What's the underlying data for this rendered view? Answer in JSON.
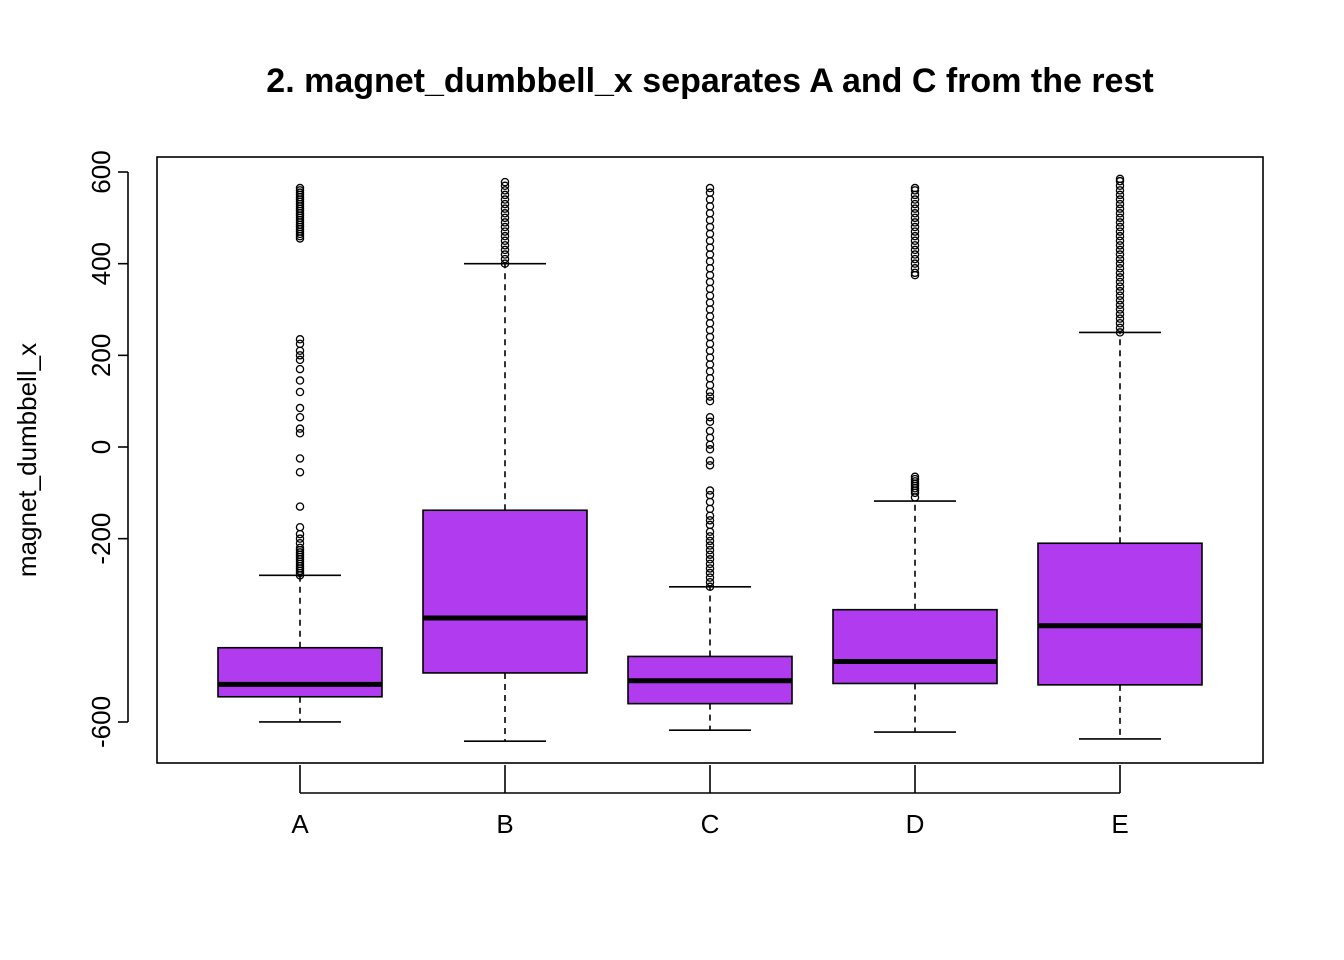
{
  "chart_data": {
    "type": "boxplot",
    "title": "2. magnet_dumbbell_x separates A and C from the rest",
    "xlabel": "",
    "ylabel": "magnet_dumbbell_x",
    "categories": [
      "A",
      "B",
      "C",
      "D",
      "E"
    ],
    "ylim": [
      -667,
      654
    ],
    "yticks": [
      -600,
      -200,
      0,
      200,
      400,
      600
    ],
    "ytick_labels": [
      "-600",
      "-200",
      "0",
      "200",
      "400",
      "600"
    ],
    "box_color": "#b13bef",
    "grid": false,
    "boxes": [
      {
        "category": "A",
        "whisker_low": -600,
        "q1": -545,
        "median": -518,
        "q3": -438,
        "whisker_high": -280,
        "outliers": [
          -280,
          -275,
          -270,
          -265,
          -260,
          -255,
          -250,
          -245,
          -240,
          -235,
          -230,
          -225,
          -220,
          -210,
          -200,
          -190,
          -175,
          -130,
          -55,
          -25,
          30,
          40,
          65,
          85,
          120,
          145,
          170,
          190,
          200,
          210,
          225,
          235,
          455,
          460,
          465,
          470,
          475,
          480,
          485,
          490,
          495,
          500,
          505,
          510,
          515,
          520,
          525,
          530,
          535,
          540,
          545,
          550,
          555,
          560,
          565
        ]
      },
      {
        "category": "B",
        "whisker_low": -642,
        "q1": -493,
        "median": -373,
        "q3": -138,
        "whisker_high": 400,
        "outliers": [
          400,
          410,
          420,
          430,
          440,
          450,
          460,
          470,
          480,
          490,
          500,
          510,
          520,
          530,
          540,
          550,
          560,
          570,
          578
        ]
      },
      {
        "category": "C",
        "whisker_low": -618,
        "q1": -560,
        "median": -510,
        "q3": -457,
        "whisker_high": -305,
        "outliers": [
          -305,
          -295,
          -285,
          -275,
          -265,
          -255,
          -245,
          -235,
          -225,
          -215,
          -205,
          -195,
          -185,
          -170,
          -160,
          -150,
          -135,
          -120,
          -105,
          -95,
          -40,
          -30,
          -5,
          5,
          20,
          35,
          55,
          65,
          100,
          110,
          120,
          135,
          150,
          165,
          180,
          195,
          210,
          225,
          240,
          255,
          270,
          285,
          300,
          315,
          330,
          345,
          360,
          375,
          390,
          405,
          420,
          435,
          450,
          465,
          480,
          495,
          510,
          525,
          540,
          555,
          565
        ]
      },
      {
        "category": "D",
        "whisker_low": -622,
        "q1": -516,
        "median": -468,
        "q3": -355,
        "whisker_high": -118,
        "outliers": [
          -110,
          -100,
          -95,
          -90,
          -85,
          -80,
          -75,
          -70,
          -65,
          375,
          380,
          390,
          400,
          410,
          420,
          430,
          440,
          450,
          460,
          470,
          480,
          490,
          500,
          510,
          520,
          530,
          540,
          550,
          560,
          565
        ]
      },
      {
        "category": "E",
        "whisker_low": -637,
        "q1": -519,
        "median": -390,
        "q3": -210,
        "whisker_high": 250,
        "outliers": [
          250,
          260,
          270,
          280,
          290,
          300,
          310,
          320,
          330,
          340,
          350,
          360,
          370,
          380,
          390,
          400,
          410,
          420,
          430,
          440,
          450,
          460,
          470,
          480,
          490,
          500,
          510,
          520,
          530,
          540,
          550,
          560,
          570,
          580,
          585
        ]
      }
    ]
  }
}
